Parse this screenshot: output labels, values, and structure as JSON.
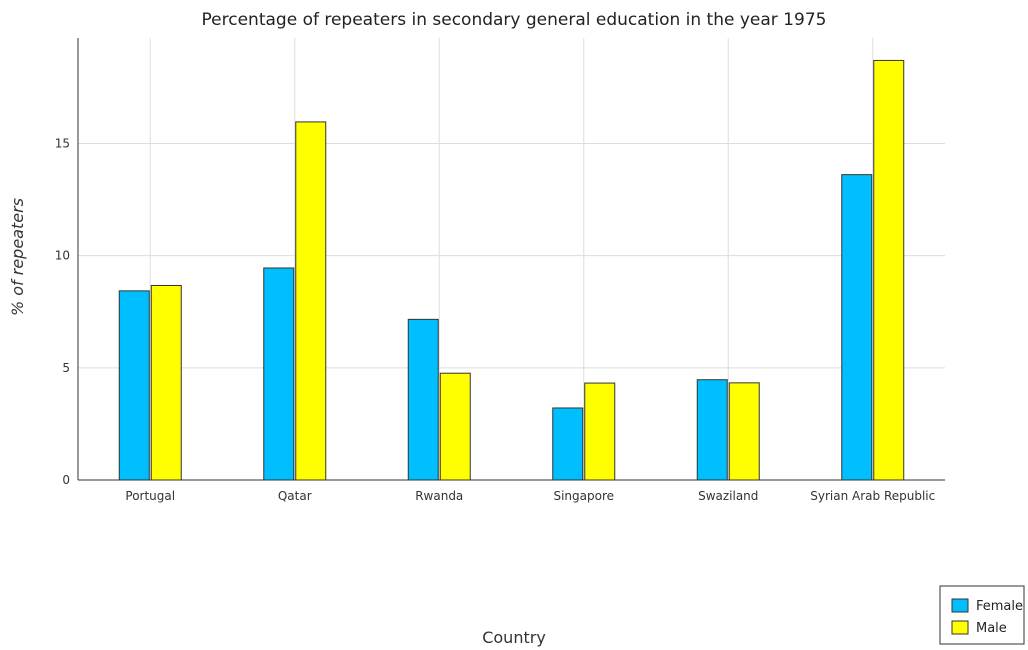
{
  "chart_data": {
    "type": "bar",
    "title": "Percentage of repeaters in secondary general education in the year 1975",
    "xlabel": "Country",
    "ylabel": "% of repeaters",
    "categories": [
      "Portugal",
      "Qatar",
      "Rwanda",
      "Singapore",
      "Swaziland",
      "Syrian Arab Republic"
    ],
    "series": [
      {
        "name": "Female",
        "color": "#00bfff",
        "values": [
          8.43,
          9.45,
          7.16,
          3.21,
          4.47,
          13.61
        ]
      },
      {
        "name": "Male",
        "color": "#ffff00",
        "values": [
          8.67,
          15.96,
          4.76,
          4.32,
          4.33,
          18.7
        ]
      }
    ],
    "yticks": [
      0,
      5,
      10,
      15
    ],
    "ylim": [
      0,
      19.7
    ],
    "grid": true,
    "legend_position": "bottom-right"
  }
}
